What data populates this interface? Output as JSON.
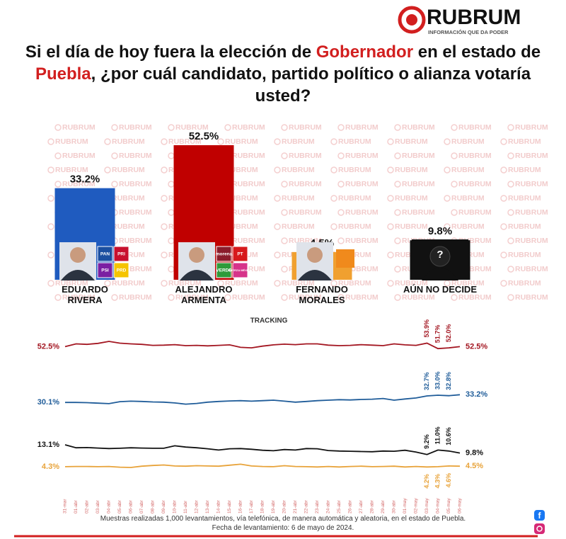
{
  "brand": {
    "name": "RUBRUM",
    "tagline": "INFORMACIÓN QUE DA PODER"
  },
  "watermark": "RUBRUM",
  "title": {
    "segments": [
      "Si el día de hoy fuera la elección de ",
      "Gobernador",
      " en el estado de ",
      "Puebla",
      ", ¿por cuál candidato, partido político o alianza votaría usted?"
    ],
    "highlight": [
      false,
      true,
      false,
      true,
      false
    ]
  },
  "parties": [
    [
      "PAN",
      "PRI",
      "PSI",
      "PRD"
    ],
    [
      "morena",
      "PT",
      "VERDE",
      "FUERZA MÉXICO"
    ],
    []
  ],
  "chart_data": [
    {
      "type": "bar",
      "categories": [
        "EDUARDO\nRIVERA",
        "ALEJANDRO\nARMENTA",
        "FERNANDO\nMORALES",
        "AÚN NO DECIDE"
      ],
      "values": [
        33.2,
        52.5,
        4.5,
        9.8
      ],
      "value_labels": [
        "33.2%",
        "52.5%",
        "4.5%",
        "9.8%"
      ],
      "colors": [
        "#1f5bbf",
        "#c00000",
        "#f0a030",
        "#111111"
      ]
    },
    {
      "type": "line",
      "title": "TRACKING",
      "categories": [
        "31-mar",
        "01-abr",
        "02-abr",
        "03-abr",
        "04-abr",
        "05-abr",
        "06-abr",
        "07-abr",
        "08-abr",
        "09-abr",
        "10-abr",
        "11-abr",
        "12-abr",
        "13-abr",
        "14-abr",
        "15-abr",
        "16-abr",
        "17-abr",
        "18-abr",
        "19-abr",
        "20-abr",
        "21-abr",
        "22-abr",
        "23-abr",
        "24-abr",
        "25-abr",
        "26-abr",
        "27-abr",
        "28-abr",
        "29-abr",
        "30-abr",
        "01-may",
        "02-may",
        "03-may",
        "04-may",
        "05-may",
        "06-may"
      ],
      "series": [
        {
          "color": "#a31621",
          "values": [
            52.5,
            53.6,
            53.4,
            53.8,
            54.6,
            53.9,
            53.6,
            53.4,
            53.0,
            53.1,
            53.3,
            52.9,
            53.0,
            52.8,
            53.0,
            53.2,
            52.2,
            52.0,
            52.7,
            53.2,
            53.5,
            53.3,
            53.6,
            53.6,
            53.1,
            52.9,
            53.0,
            53.3,
            53.1,
            52.9,
            53.6,
            53.2,
            53.0,
            53.9,
            51.7,
            52.0,
            52.5
          ],
          "value_labels": [
            "52.5%",
            null,
            null,
            null,
            null,
            null,
            null,
            null,
            null,
            null,
            null,
            null,
            null,
            null,
            null,
            null,
            null,
            null,
            null,
            null,
            null,
            null,
            null,
            null,
            null,
            null,
            null,
            null,
            null,
            null,
            null,
            null,
            null,
            "53.9%",
            "51.7%",
            "52.0%",
            "52.5%"
          ]
        },
        {
          "color": "#1f5c99",
          "values": [
            30.1,
            30.1,
            30.0,
            29.8,
            29.6,
            30.4,
            30.6,
            30.5,
            30.3,
            30.2,
            29.9,
            29.4,
            29.7,
            30.2,
            30.5,
            30.7,
            30.8,
            30.6,
            30.8,
            31.0,
            30.6,
            30.2,
            30.5,
            30.8,
            31.0,
            31.2,
            31.1,
            31.3,
            31.4,
            31.7,
            31.0,
            31.5,
            31.9,
            32.7,
            33.0,
            32.8,
            33.2
          ],
          "value_labels": [
            "30.1%",
            null,
            null,
            null,
            null,
            null,
            null,
            null,
            null,
            null,
            null,
            null,
            null,
            null,
            null,
            null,
            null,
            null,
            null,
            null,
            null,
            null,
            null,
            null,
            null,
            null,
            null,
            null,
            null,
            null,
            null,
            null,
            null,
            "32.7%",
            "33.0%",
            "32.8%",
            "33.2%"
          ]
        },
        {
          "color": "#111111",
          "values": [
            13.1,
            11.9,
            12.0,
            11.8,
            11.6,
            11.7,
            11.9,
            11.8,
            11.7,
            11.7,
            12.7,
            12.2,
            11.9,
            11.5,
            11.0,
            11.5,
            11.6,
            11.3,
            10.9,
            10.7,
            11.2,
            11.0,
            11.6,
            11.5,
            10.8,
            10.6,
            10.5,
            10.4,
            10.3,
            10.6,
            10.5,
            10.9,
            10.2,
            9.2,
            11.0,
            10.6,
            9.8
          ],
          "value_labels": [
            "13.1%",
            null,
            null,
            null,
            null,
            null,
            null,
            null,
            null,
            null,
            null,
            null,
            null,
            null,
            null,
            null,
            null,
            null,
            null,
            null,
            null,
            null,
            null,
            null,
            null,
            null,
            null,
            null,
            null,
            null,
            null,
            null,
            null,
            "9.2%",
            "11.0%",
            "10.6%",
            "9.8%"
          ]
        },
        {
          "color": "#e8a33a",
          "values": [
            4.3,
            4.4,
            4.4,
            4.3,
            4.4,
            4.1,
            4.0,
            4.5,
            4.8,
            5.0,
            4.6,
            4.5,
            4.7,
            4.6,
            4.5,
            4.9,
            5.3,
            4.6,
            4.4,
            4.3,
            4.7,
            4.4,
            4.3,
            4.2,
            4.4,
            4.2,
            4.4,
            4.5,
            4.3,
            4.4,
            4.5,
            4.2,
            4.4,
            4.2,
            4.3,
            4.6,
            4.5
          ],
          "value_labels": [
            "4.3%",
            null,
            null,
            null,
            null,
            null,
            null,
            null,
            null,
            null,
            null,
            null,
            null,
            null,
            null,
            null,
            null,
            null,
            null,
            null,
            null,
            null,
            null,
            null,
            null,
            null,
            null,
            null,
            null,
            null,
            null,
            null,
            null,
            "4.2%",
            "4.3%",
            "4.6%",
            "4.5%"
          ]
        }
      ]
    }
  ],
  "footer": [
    "Muestras realizadas 1,000 levantamientos, vía telefónica, de manera automática y aleatoria, en el estado de Puebla.",
    "Fecha de levantamiento: 6 de mayo de 2024."
  ]
}
